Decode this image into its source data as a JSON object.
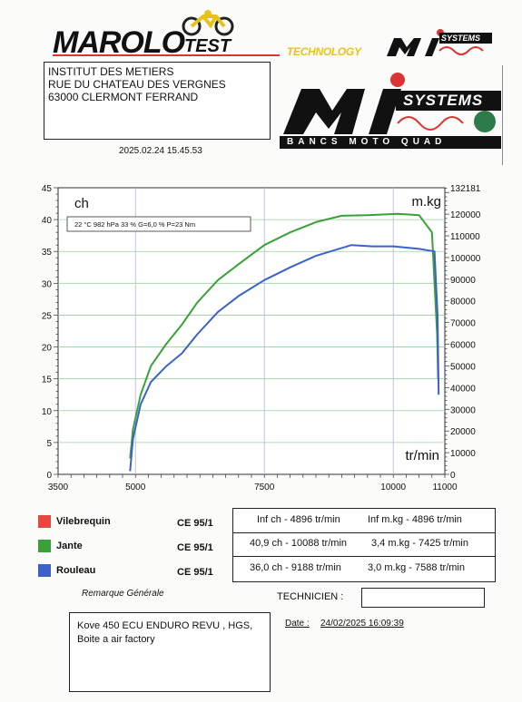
{
  "header": {
    "brand_main": "MAROLO",
    "brand_sub": "TEST",
    "partner_text": "TECHNOLOGY",
    "partner_logo_text": "SYSTEMS",
    "bench_text": "BANCS MOTO QUAD"
  },
  "address": {
    "line1": "INSTITUT DES METIERS",
    "line2": "RUE DU CHATEAU DES VERGNES",
    "line3": "63000 CLERMONT FERRAND"
  },
  "timestamp": "2025.02.24 15.45.53",
  "conditions": "22 °C   982 hPa   33 %   G=6,0 %   P=23 Nm",
  "chart_data": {
    "type": "line",
    "title": "",
    "xlabel": "tr/min",
    "ylabel": "ch",
    "y2label": "m.kg",
    "xlim": [
      3500,
      11000
    ],
    "ylim": [
      0,
      45
    ],
    "y2lim": [
      0,
      132181
    ],
    "x_ticks": [
      "3500",
      "5000",
      "7500",
      "10000",
      "11000"
    ],
    "x_tick_values": [
      3500,
      5000,
      7500,
      10000,
      11000
    ],
    "y_ticks": [
      0,
      5,
      10,
      15,
      20,
      25,
      30,
      35,
      40,
      45
    ],
    "y2_ticks": [
      "0",
      "10000",
      "20000",
      "30000",
      "40000",
      "50000",
      "60000",
      "70000",
      "80000",
      "90000",
      "100000",
      "110000",
      "120000",
      "132181"
    ],
    "y2_tick_values": [
      0,
      10000,
      20000,
      30000,
      40000,
      50000,
      60000,
      70000,
      80000,
      90000,
      100000,
      110000,
      120000,
      132181
    ],
    "grid": true,
    "series": [
      {
        "name": "Jante",
        "color": "#3aa03a",
        "x": [
          4896,
          4950,
          5100,
          5300,
          5600,
          5900,
          6200,
          6600,
          7000,
          7500,
          8000,
          8500,
          9000,
          9500,
          10088,
          10500,
          10750,
          10850,
          10870
        ],
        "y": [
          2.5,
          7,
          12.5,
          17,
          20.5,
          23.5,
          27,
          30.5,
          33,
          36,
          38,
          39.6,
          40.6,
          40.7,
          40.9,
          40.7,
          38,
          22,
          15
        ]
      },
      {
        "name": "Rouleau",
        "color": "#3a62c8",
        "x": [
          4896,
          4950,
          5100,
          5300,
          5600,
          5900,
          6200,
          6600,
          7000,
          7500,
          8000,
          8500,
          9188,
          9600,
          10000,
          10500,
          10800,
          10860,
          10880
        ],
        "y": [
          0.5,
          5.5,
          11,
          14.5,
          17,
          19,
          22,
          25.5,
          28,
          30.5,
          32.5,
          34.3,
          36,
          35.8,
          35.8,
          35.4,
          35,
          25,
          12.5
        ]
      }
    ]
  },
  "legend": [
    {
      "label": "Vilebrequin",
      "color": "#e8473d",
      "norm": "CE 95/1"
    },
    {
      "label": "Jante",
      "color": "#3aa03a",
      "norm": "CE 95/1"
    },
    {
      "label": "Rouleau",
      "color": "#3a62c8",
      "norm": "CE 95/1"
    }
  ],
  "results": [
    {
      "power": "Inf ch - 4896 tr/min",
      "torque": "Inf m.kg - 4896 tr/min"
    },
    {
      "power": "40,9 ch - 10088 tr/min",
      "torque": "3,4 m.kg - 7425 tr/min"
    },
    {
      "power": "36,0 ch - 9188 tr/min",
      "torque": "3,0 m.kg - 7588 tr/min"
    }
  ],
  "footer": {
    "remark_title": "Remarque Générale",
    "remark_line1": "Kove 450 ECU ENDURO REVU , HGS,",
    "remark_line2": "Boite a air factory",
    "technicien_label": "TECHNICIEN :",
    "technicien_value": "",
    "date_label": "Date :",
    "date_value": "24/02/2025 16:09:39"
  }
}
